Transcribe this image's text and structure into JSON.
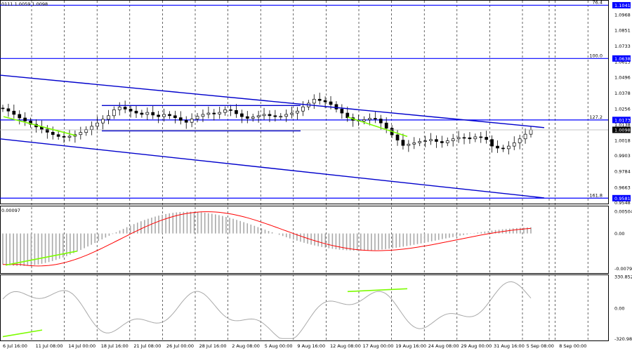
{
  "header": {
    "info": "0111 1.0059 1.0098"
  },
  "chart_data": [
    {
      "type": "candlestick",
      "panel": "price",
      "ylim": [
        0.954,
        1.107
      ],
      "y_ticks": [
        "1.1041",
        "1.0968",
        "1.0851",
        "1.0733",
        "1.0613",
        "1.0496",
        "1.0378",
        "1.0256",
        "1.0138",
        "1.0018",
        "0.9903",
        "0.9784",
        "0.9663",
        "0.9548"
      ],
      "current_price": "1.0098",
      "closes": [
        1.0258,
        1.024,
        1.0215,
        1.0188,
        1.0165,
        1.014,
        1.012,
        1.0103,
        1.008,
        1.0062,
        1.0048,
        1.0042,
        1.005,
        1.0062,
        1.0078,
        1.01,
        1.0125,
        1.015,
        1.0178,
        1.0205,
        1.025,
        1.027,
        1.0255,
        1.024,
        1.0225,
        1.0215,
        1.023,
        1.021,
        1.0198,
        1.0215,
        1.0205,
        1.019,
        1.017,
        1.0155,
        1.018,
        1.02,
        1.0215,
        1.0225,
        1.0218,
        1.023,
        1.025,
        1.0245,
        1.022,
        1.0198,
        1.0185,
        1.0195,
        1.0205,
        1.0215,
        1.0205,
        1.0198,
        1.02,
        1.0215,
        1.0225,
        1.024,
        1.0272,
        1.03,
        1.033,
        1.032,
        1.031,
        1.029,
        1.0255,
        1.0225,
        1.019,
        1.017,
        1.0165,
        1.0175,
        1.0185,
        1.018,
        1.015,
        1.011,
        1.006,
        1.002,
        0.998,
        0.999,
        1.0,
        1.001,
        1.0015,
        1.0025,
        1.001,
        1.0,
        1.0015,
        1.003,
        1.004,
        1.0038,
        1.003,
        1.0045,
        1.0042,
        1.0025,
        0.9975,
        0.996,
        0.9955,
        0.9975,
        1.0,
        1.003,
        1.0065,
        1.0098
      ],
      "horizontal_levels": [
        {
          "value": 1.1041,
          "label": "76.4",
          "tag": "1.1041"
        },
        {
          "value": 1.0638,
          "label": "100.0",
          "tag": "1.0638"
        },
        {
          "value": 1.0173,
          "label": "127.2",
          "tag": "1.0173"
        },
        {
          "value": 0.9581,
          "label": "161.8",
          "tag": "0.9581"
        }
      ]
    },
    {
      "type": "histogram",
      "panel": "macd",
      "label": "0.00097",
      "y_ticks": [
        "0.00504",
        "0.00",
        "-0.00797"
      ],
      "ylim": [
        -0.009,
        0.006
      ]
    },
    {
      "type": "line",
      "panel": "cci",
      "y_ticks": [
        "330.8524",
        "0.00",
        "-320.985"
      ],
      "ylim": [
        -340,
        340
      ]
    }
  ],
  "x_ticks": [
    "6 Jul 16:00",
    "11 Jul 08:00",
    "14 Jul 00:00",
    "18 Jul 16:00",
    "21 Jul 08:00",
    "26 Jul 00:00",
    "28 Jul 16:00",
    "2 Aug 08:00",
    "5 Aug 00:00",
    "9 Aug 16:00",
    "12 Aug 08:00",
    "17 Aug 00:00",
    "19 Aug 16:00",
    "24 Aug 08:00",
    "29 Aug 00:00",
    "31 Aug 16:00",
    "5 Sep 08:00",
    "8 Sep 00:00"
  ],
  "colors": {
    "channel": "#0000cc",
    "level": "#0000ff",
    "divergence": "#7cfc00",
    "signal": "#ff0000",
    "histogram": "#a9a9a9",
    "cci": "#a9a9a9"
  }
}
